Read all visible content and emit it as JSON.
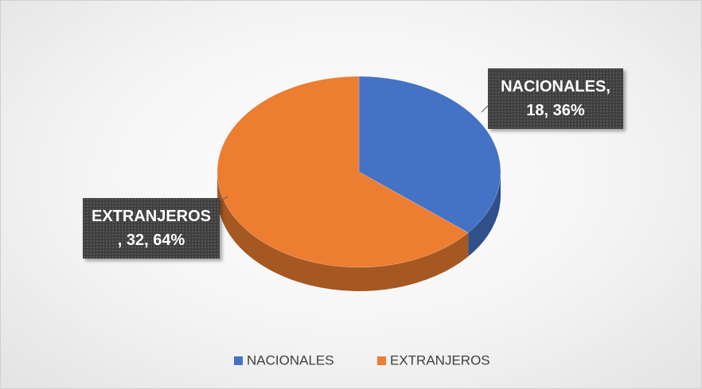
{
  "chart_data": {
    "type": "pie",
    "categories": [
      "NACIONALES",
      "EXTRANJEROS"
    ],
    "values": [
      18,
      32
    ],
    "value_labels": [
      "NACIONALES,\n18, 36%",
      "EXTRANJEROS\n, 32, 64%"
    ],
    "colors": [
      "#4472c4",
      "#ed7d31"
    ],
    "legend": "bottom"
  }
}
